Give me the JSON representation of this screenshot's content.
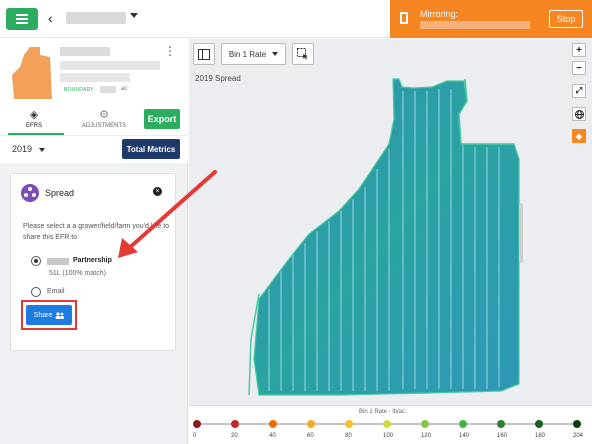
{
  "topbar": {
    "mirroring_label": "Mirroring:",
    "stop_label": "Stop"
  },
  "field": {
    "boundary_label": "BOUNDARY",
    "acres_unit": "ac"
  },
  "tabs": {
    "efrs_label": "EFRS",
    "adjustments_label": "ADJUSTMENTS",
    "export_label": "Export"
  },
  "year_row": {
    "year": "2019",
    "total_metrics_label": "Total Metrics"
  },
  "share_card": {
    "title": "Spread",
    "prompt": "Please select a a grower/field/farm you'd like to share this EFR to",
    "option_partnership": "Partnership",
    "option_partnership_detail": "51L (100% match)",
    "option_email": "Email",
    "share_label": "Share"
  },
  "map": {
    "rate_select": "Bin 1 Rate",
    "layer_label": "2019 Spread",
    "zoom_in": "+",
    "zoom_out": "−"
  },
  "legend": {
    "title": "Bin 1 Rate - lb/ac",
    "stops": [
      {
        "label": "0",
        "color": "#8b1a1a"
      },
      {
        "label": "20",
        "color": "#c62828"
      },
      {
        "label": "40",
        "color": "#ef6c00"
      },
      {
        "label": "60",
        "color": "#f9a825"
      },
      {
        "label": "80",
        "color": "#fbc02d"
      },
      {
        "label": "100",
        "color": "#cddc39"
      },
      {
        "label": "120",
        "color": "#8bc34a"
      },
      {
        "label": "140",
        "color": "#4caf50"
      },
      {
        "label": "160",
        "color": "#2e7d32"
      },
      {
        "label": "180",
        "color": "#1b5e20"
      },
      {
        "label": "204",
        "color": "#0d3d12"
      }
    ]
  },
  "colors": {
    "brand_green": "#2bac60",
    "mirror_orange": "#f58621",
    "total_metrics_navy": "#1f3a6a",
    "share_blue": "#1e7ce0",
    "highlight_red": "#e53935",
    "spread_teal": "#2fa4a8"
  }
}
